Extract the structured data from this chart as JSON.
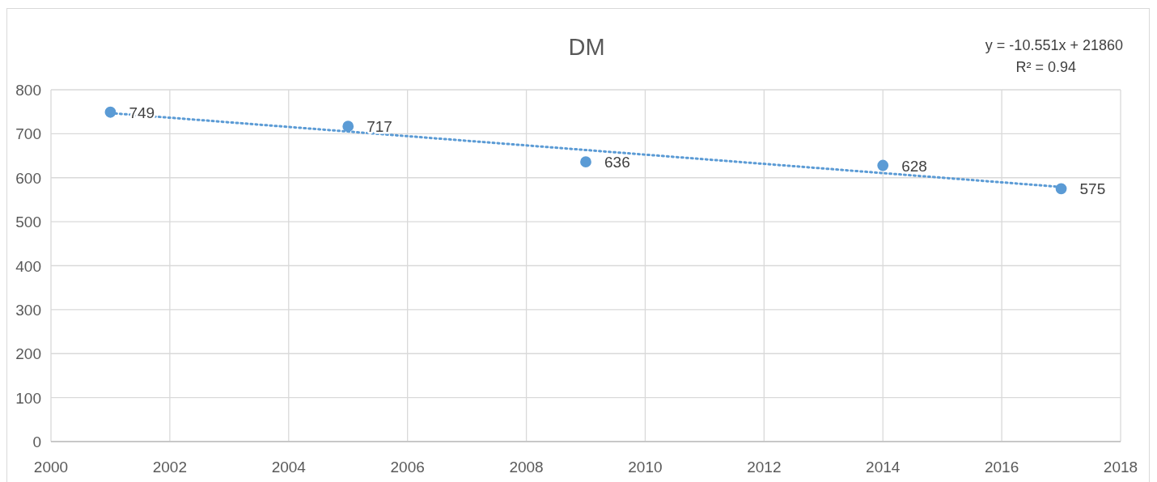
{
  "chart_data": {
    "type": "scatter",
    "title": "DM",
    "annotations": [
      "y = -10.551x + 21860",
      "R² = 0.94"
    ],
    "xlim": [
      2000,
      2018
    ],
    "xticks": [
      2000,
      2002,
      2004,
      2006,
      2008,
      2010,
      2012,
      2014,
      2016,
      2018
    ],
    "ylim": [
      0,
      800
    ],
    "yticks": [
      0,
      100,
      200,
      300,
      400,
      500,
      600,
      700,
      800
    ],
    "grid": true,
    "series": [
      {
        "color": "#5b9bd5",
        "marker": "circle",
        "x": [
          2001,
          2005,
          2009,
          2014,
          2017
        ],
        "values": [
          749,
          717,
          636,
          628,
          575
        ],
        "value_labels": [
          "749",
          "717",
          "636",
          "628",
          "575"
        ]
      },
      {
        "type": "line",
        "color": "#5b9bd5",
        "marker": "none",
        "line_style": "dotted",
        "x": [
          2001,
          2017
        ],
        "values": [
          747,
          579
        ]
      }
    ]
  }
}
